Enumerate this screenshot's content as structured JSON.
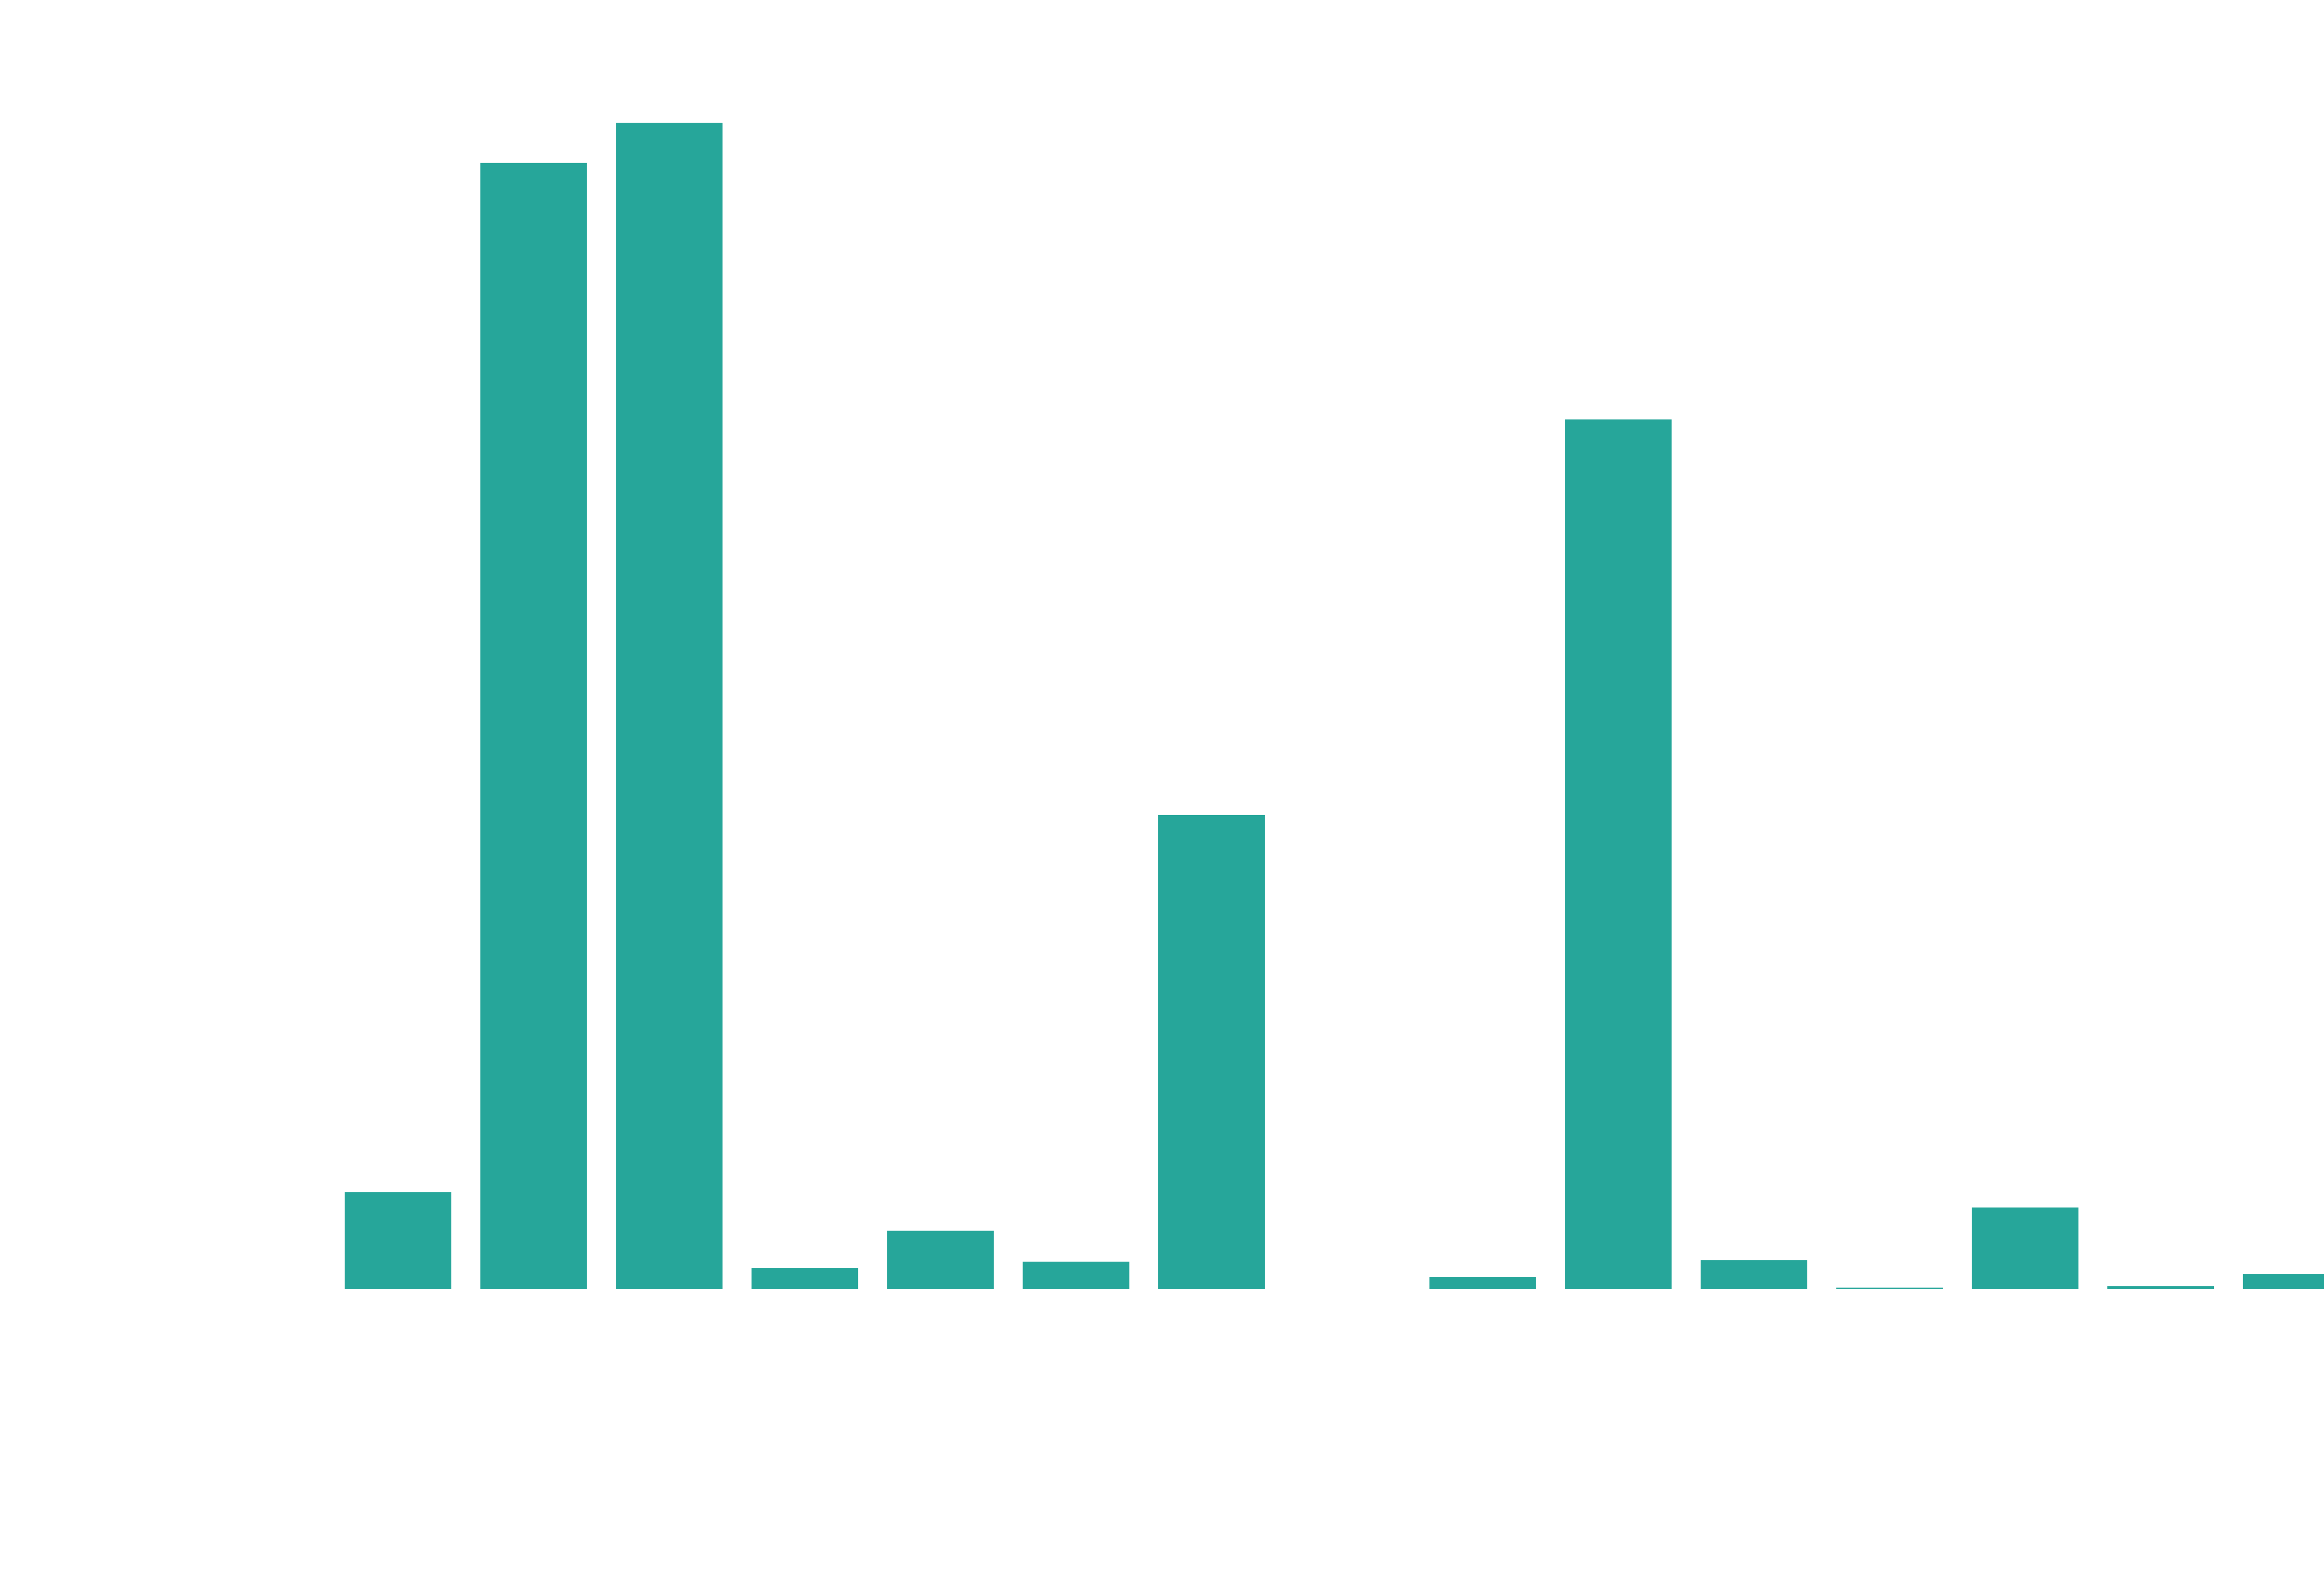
{
  "chart_data": {
    "type": "bar",
    "title": "",
    "xlabel": "",
    "ylabel": "",
    "categories": [
      "",
      "",
      "",
      "",
      "",
      "",
      "",
      "",
      "",
      "",
      "",
      "",
      "",
      "",
      "",
      ""
    ],
    "values": [
      0.6,
      32,
      365,
      378,
      7.5,
      19.5,
      9.5,
      154,
      0.4,
      4.5,
      282,
      10,
      1.1,
      27,
      1.6,
      5.5
    ],
    "ylim": [
      0,
      378
    ],
    "grid": false,
    "legend": "none",
    "colors": {
      "bar": "#26a69a",
      "background": "#ffffff"
    }
  }
}
